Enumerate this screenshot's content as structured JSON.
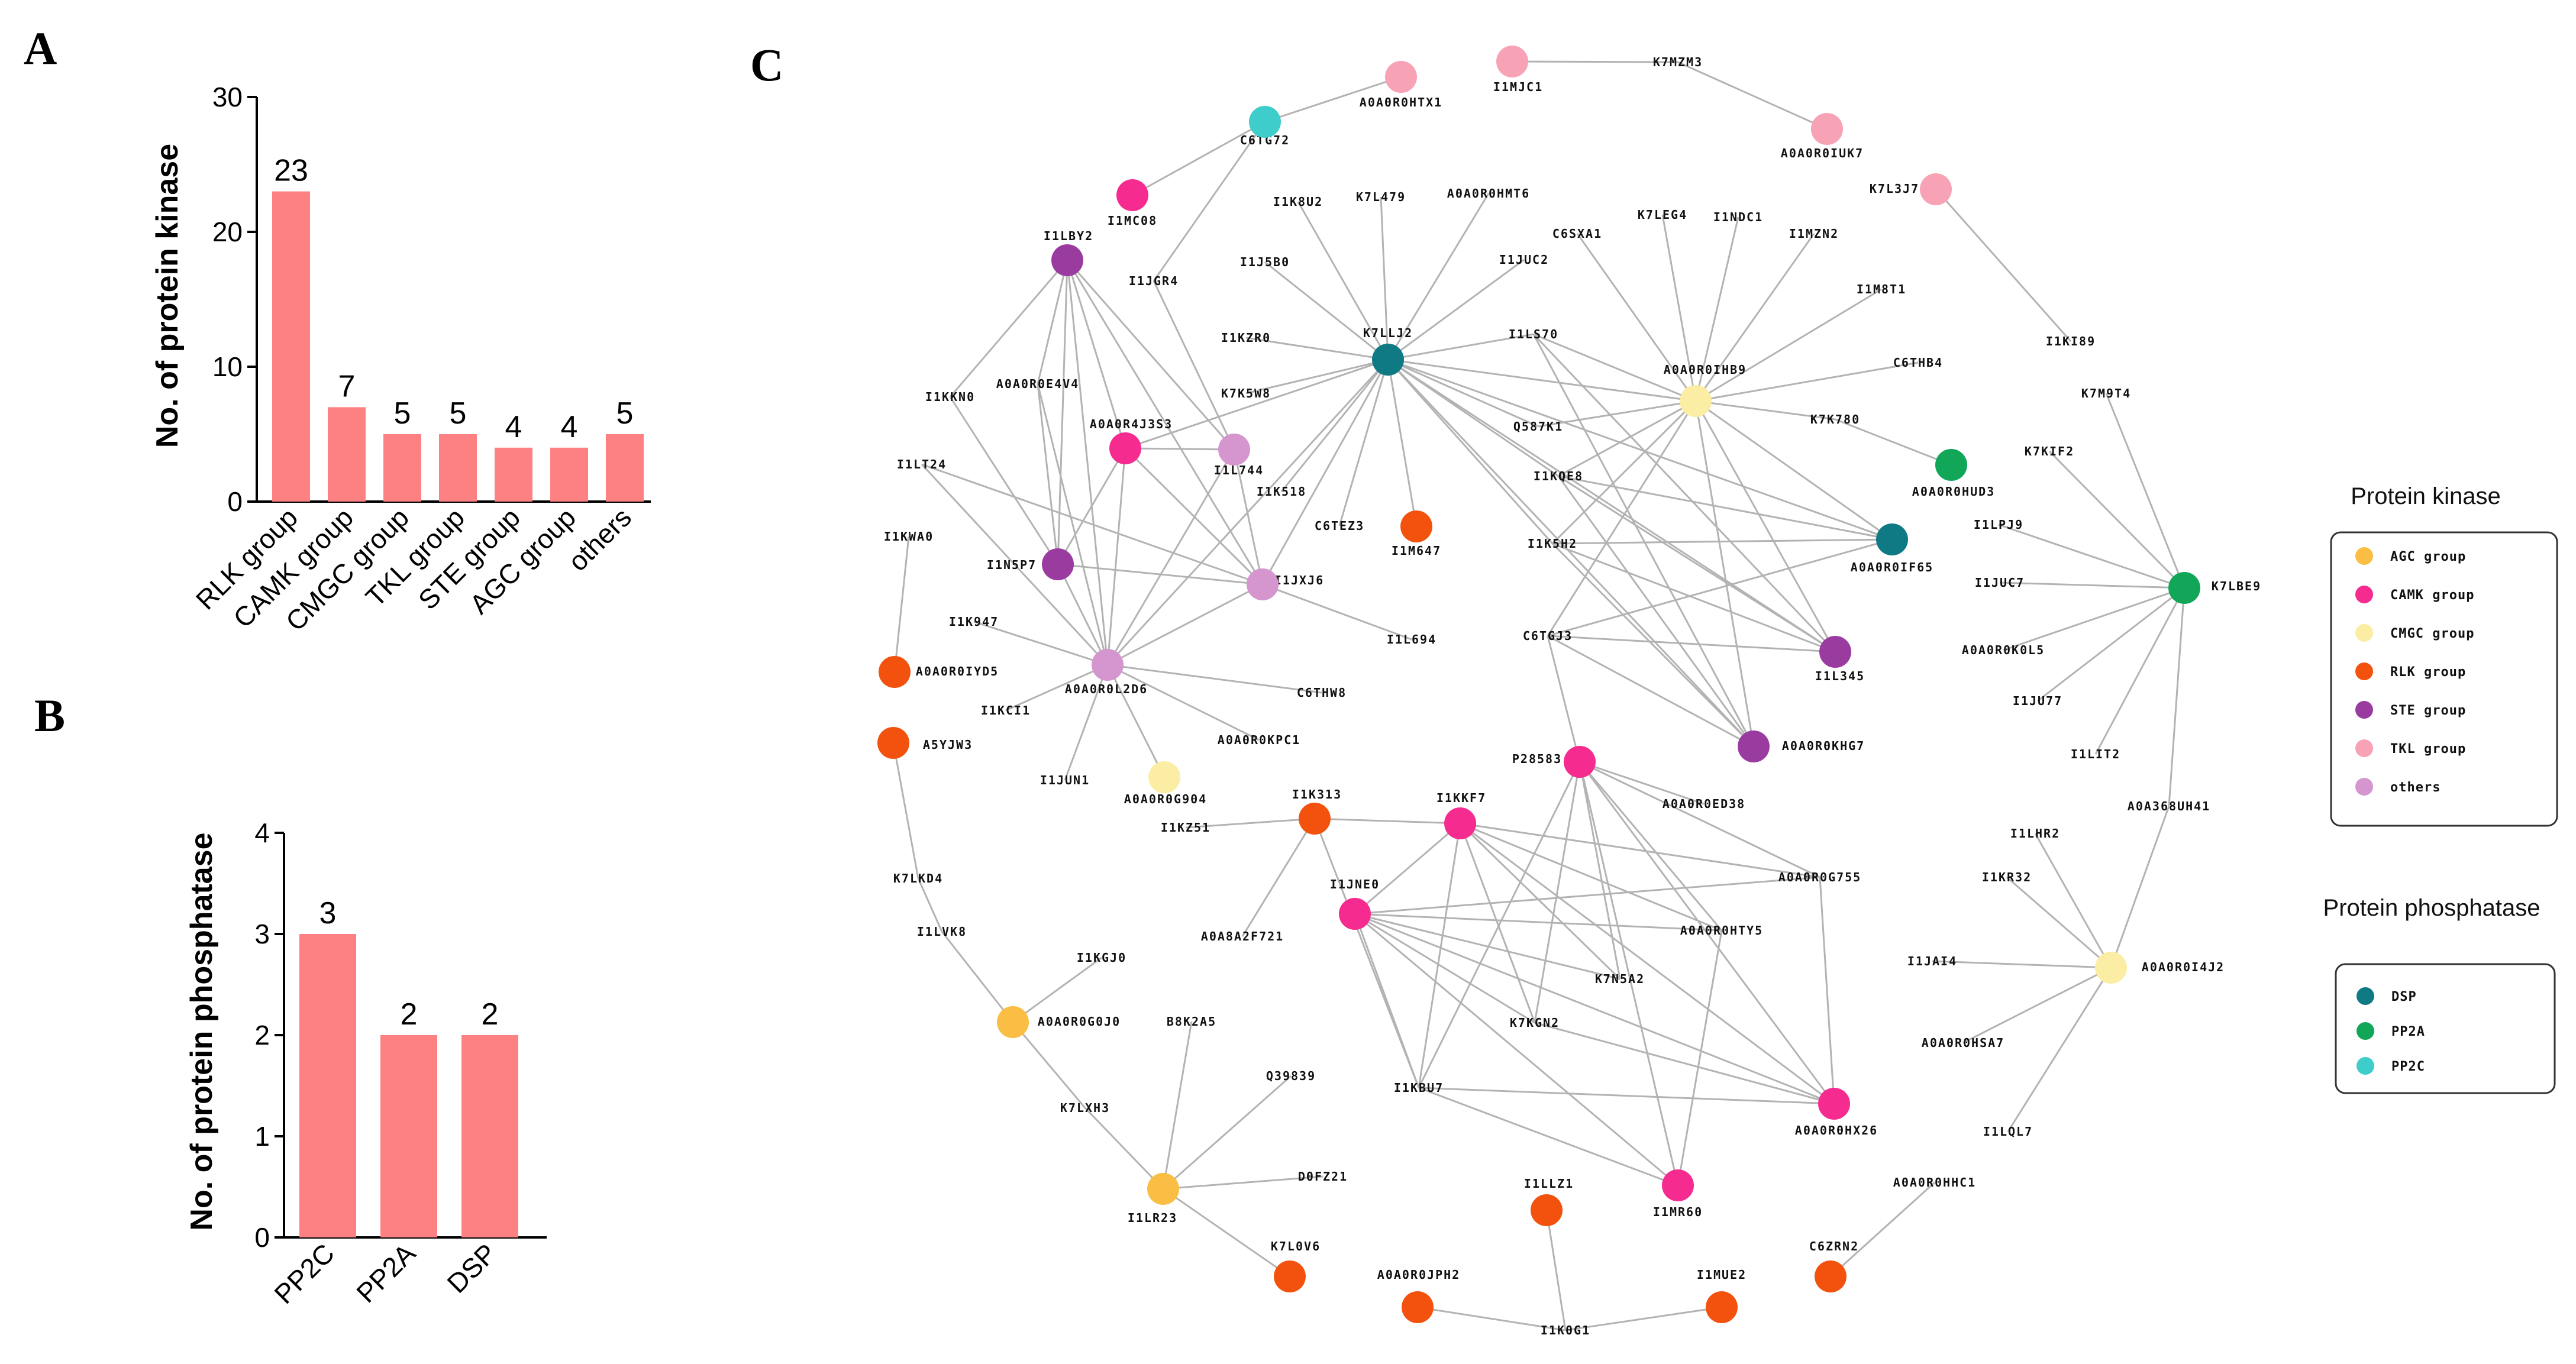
{
  "panel_labels": {
    "a": "A",
    "b": "B",
    "c": "C"
  },
  "chart_data": [
    {
      "type": "bar",
      "panel": "A",
      "ylabel": "No. of protein kinase",
      "ylim": [
        0,
        30
      ],
      "yticks": [
        "0",
        "10",
        "20",
        "30"
      ],
      "categories": [
        "RLK group",
        "CAMK group",
        "CMGC group",
        "TKL group",
        "STE group",
        "AGC group",
        "others"
      ],
      "values": [
        23,
        7,
        5,
        5,
        4,
        4,
        5
      ],
      "value_labels": [
        "23",
        "7",
        "5",
        "5",
        "4",
        "4",
        "5"
      ],
      "color": "#fd8183"
    },
    {
      "type": "bar",
      "panel": "B",
      "ylabel": "No. of protein phosphatase",
      "ylim": [
        0,
        4
      ],
      "yticks": [
        "0",
        "1",
        "2",
        "3",
        "4"
      ],
      "categories": [
        "PP2C",
        "PP2A",
        "DSP"
      ],
      "values": [
        3,
        2,
        2
      ],
      "value_labels": [
        "3",
        "2",
        "2"
      ],
      "color": "#fd8183"
    }
  ],
  "network": {
    "groups": {
      "AGC": "#f9be43",
      "CAMK": "#f52b90",
      "CMGC": "#fbeda4",
      "RLK": "#f3520e",
      "STE": "#9a3c9f",
      "TKL": "#f8a2b5",
      "others": "#d596d0",
      "DSP": "#107a84",
      "PP2A": "#12a659",
      "PP2C": "#3ecdcb"
    },
    "legend_kinase": {
      "title": "Protein kinase",
      "items": [
        {
          "label": "AGC group",
          "group": "AGC"
        },
        {
          "label": "CAMK group",
          "group": "CAMK"
        },
        {
          "label": "CMGC group",
          "group": "CMGC"
        },
        {
          "label": "RLK group",
          "group": "RLK"
        },
        {
          "label": "STE group",
          "group": "STE"
        },
        {
          "label": "TKL group",
          "group": "TKL"
        },
        {
          "label": "others",
          "group": "others"
        }
      ]
    },
    "legend_phosphatase": {
      "title": "Protein phosphatase",
      "items": [
        {
          "label": "DSP",
          "group": "DSP"
        },
        {
          "label": "PP2A",
          "group": "PP2A"
        },
        {
          "label": "PP2C",
          "group": "PP2C"
        }
      ]
    },
    "hubs": [
      {
        "id": "K7LLJ2",
        "group": "DSP"
      },
      {
        "id": "A0A0R0IHB9",
        "group": "CMGC"
      },
      {
        "id": "A0A0R0IF65",
        "group": "DSP"
      },
      {
        "id": "A0A0R0HUD3",
        "group": "PP2A"
      },
      {
        "id": "K7LBE9",
        "group": "PP2A"
      },
      {
        "id": "C6TG72",
        "group": "PP2C"
      },
      {
        "id": "A0A0R0HTX1",
        "group": "TKL"
      },
      {
        "id": "I1MJC1",
        "group": "TKL"
      },
      {
        "id": "A0A0R0IUK7",
        "group": "TKL"
      },
      {
        "id": "K7L3J7",
        "group": "TKL"
      },
      {
        "id": "I1MC08",
        "group": "CAMK"
      },
      {
        "id": "I1LBY2",
        "group": "STE"
      },
      {
        "id": "A0A0R4J3S3",
        "group": "CAMK"
      },
      {
        "id": "I1L744",
        "group": "others"
      },
      {
        "id": "I1N5P7",
        "group": "STE"
      },
      {
        "id": "I1JXJ6",
        "group": "others"
      },
      {
        "id": "A0A0R0L2D6",
        "group": "others"
      },
      {
        "id": "A0A0R0IYD5",
        "group": "RLK"
      },
      {
        "id": "A5YJW3",
        "group": "RLK"
      },
      {
        "id": "A0A0R0G904",
        "group": "CMGC"
      },
      {
        "id": "I1M647",
        "group": "RLK"
      },
      {
        "id": "I1L345",
        "group": "STE"
      },
      {
        "id": "A0A0R0KHG7",
        "group": "STE"
      },
      {
        "id": "P28583",
        "group": "CAMK"
      },
      {
        "id": "I1K313",
        "group": "RLK"
      },
      {
        "id": "I1KKF7",
        "group": "CAMK"
      },
      {
        "id": "I1JNE0",
        "group": "CAMK"
      },
      {
        "id": "A0A0R0G0J0",
        "group": "AGC"
      },
      {
        "id": "I1LR23",
        "group": "AGC"
      },
      {
        "id": "K7L0V6",
        "group": "RLK"
      },
      {
        "id": "A0A0R0JPH2",
        "group": "RLK"
      },
      {
        "id": "I1LLZ1",
        "group": "RLK"
      },
      {
        "id": "I1MUE2",
        "group": "RLK"
      },
      {
        "id": "C6ZRN2",
        "group": "RLK"
      },
      {
        "id": "I1MR60",
        "group": "CAMK"
      },
      {
        "id": "A0A0R0HX26",
        "group": "CAMK"
      },
      {
        "id": "A0A0R0I4J2",
        "group": "CMGC"
      }
    ],
    "labels": [
      "A0A0R0HTX1",
      "I1MJC1",
      "K7MZM3",
      "C6TG72",
      "A0A0R0IUK7",
      "I1MC08",
      "K7L3J7",
      "I1K8U2",
      "K7L479",
      "A0A0R0HMT6",
      "I1LBY2",
      "C6SXA1",
      "K7LEG4",
      "I1NDC1",
      "I1MZN2",
      "I1J5B0",
      "I1JUC2",
      "I1JGR4",
      "I1M8T1",
      "I1KZR0",
      "K7LLJ2",
      "I1LS70",
      "I1KI89",
      "C6THB4",
      "A0A0R0IHB9",
      "I1KKN0",
      "A0A0R0E4V4",
      "K7K5W8",
      "K7M9T4",
      "A0A0R4J3S3",
      "Q587K1",
      "K7K780",
      "K7KIF2",
      "I1LT24",
      "I1L744",
      "A0A0R0HUD3",
      "I1KQE8",
      "I1K518",
      "C6TEZ3",
      "I1M647",
      "I1LPJ9",
      "I1KWA0",
      "I1K5H2",
      "A0A0R0IF65",
      "I1N5P7",
      "I1JXJ6",
      "I1JUC7",
      "K7LBE9",
      "C6TGJ3",
      "I1K947",
      "I1L694",
      "A0A0R0K0L5",
      "A0A0R0IYD5",
      "I1L345",
      "A0A0R0L2D6",
      "C6THW8",
      "I1JU77",
      "I1KCI1",
      "A5YJW3",
      "A0A0R0KPC1",
      "A0A0R0KHG7",
      "P28583",
      "I1LIT2",
      "I1JUN1",
      "A0A0R0G904",
      "I1K313",
      "I1KKF7",
      "A0A0R0ED38",
      "A0A368UH41",
      "I1KZ51",
      "I1LHR2",
      "K7LKD4",
      "I1JNE0",
      "A0A0R0G755",
      "I1KR32",
      "A0A8A2F721",
      "A0A0R0HTY5",
      "I1LVK8",
      "I1KGJ0",
      "I1JAI4",
      "A0A0R0I4J2",
      "K7N5A2",
      "A0A0R0G0J0",
      "B8K2A5",
      "K7KGN2",
      "A0A0R0HSA7",
      "Q39839",
      "I1KBU7",
      "K7LXH3",
      "A0A0R0HX26",
      "I1LQL7",
      "D0FZ21",
      "I1LLZ1",
      "A0A0R0HHC1",
      "I1LR23",
      "I1MR60",
      "K7L0V6",
      "C6ZRN2",
      "A0A0R0JPH2",
      "I1MUE2",
      "I1K0G1"
    ]
  }
}
